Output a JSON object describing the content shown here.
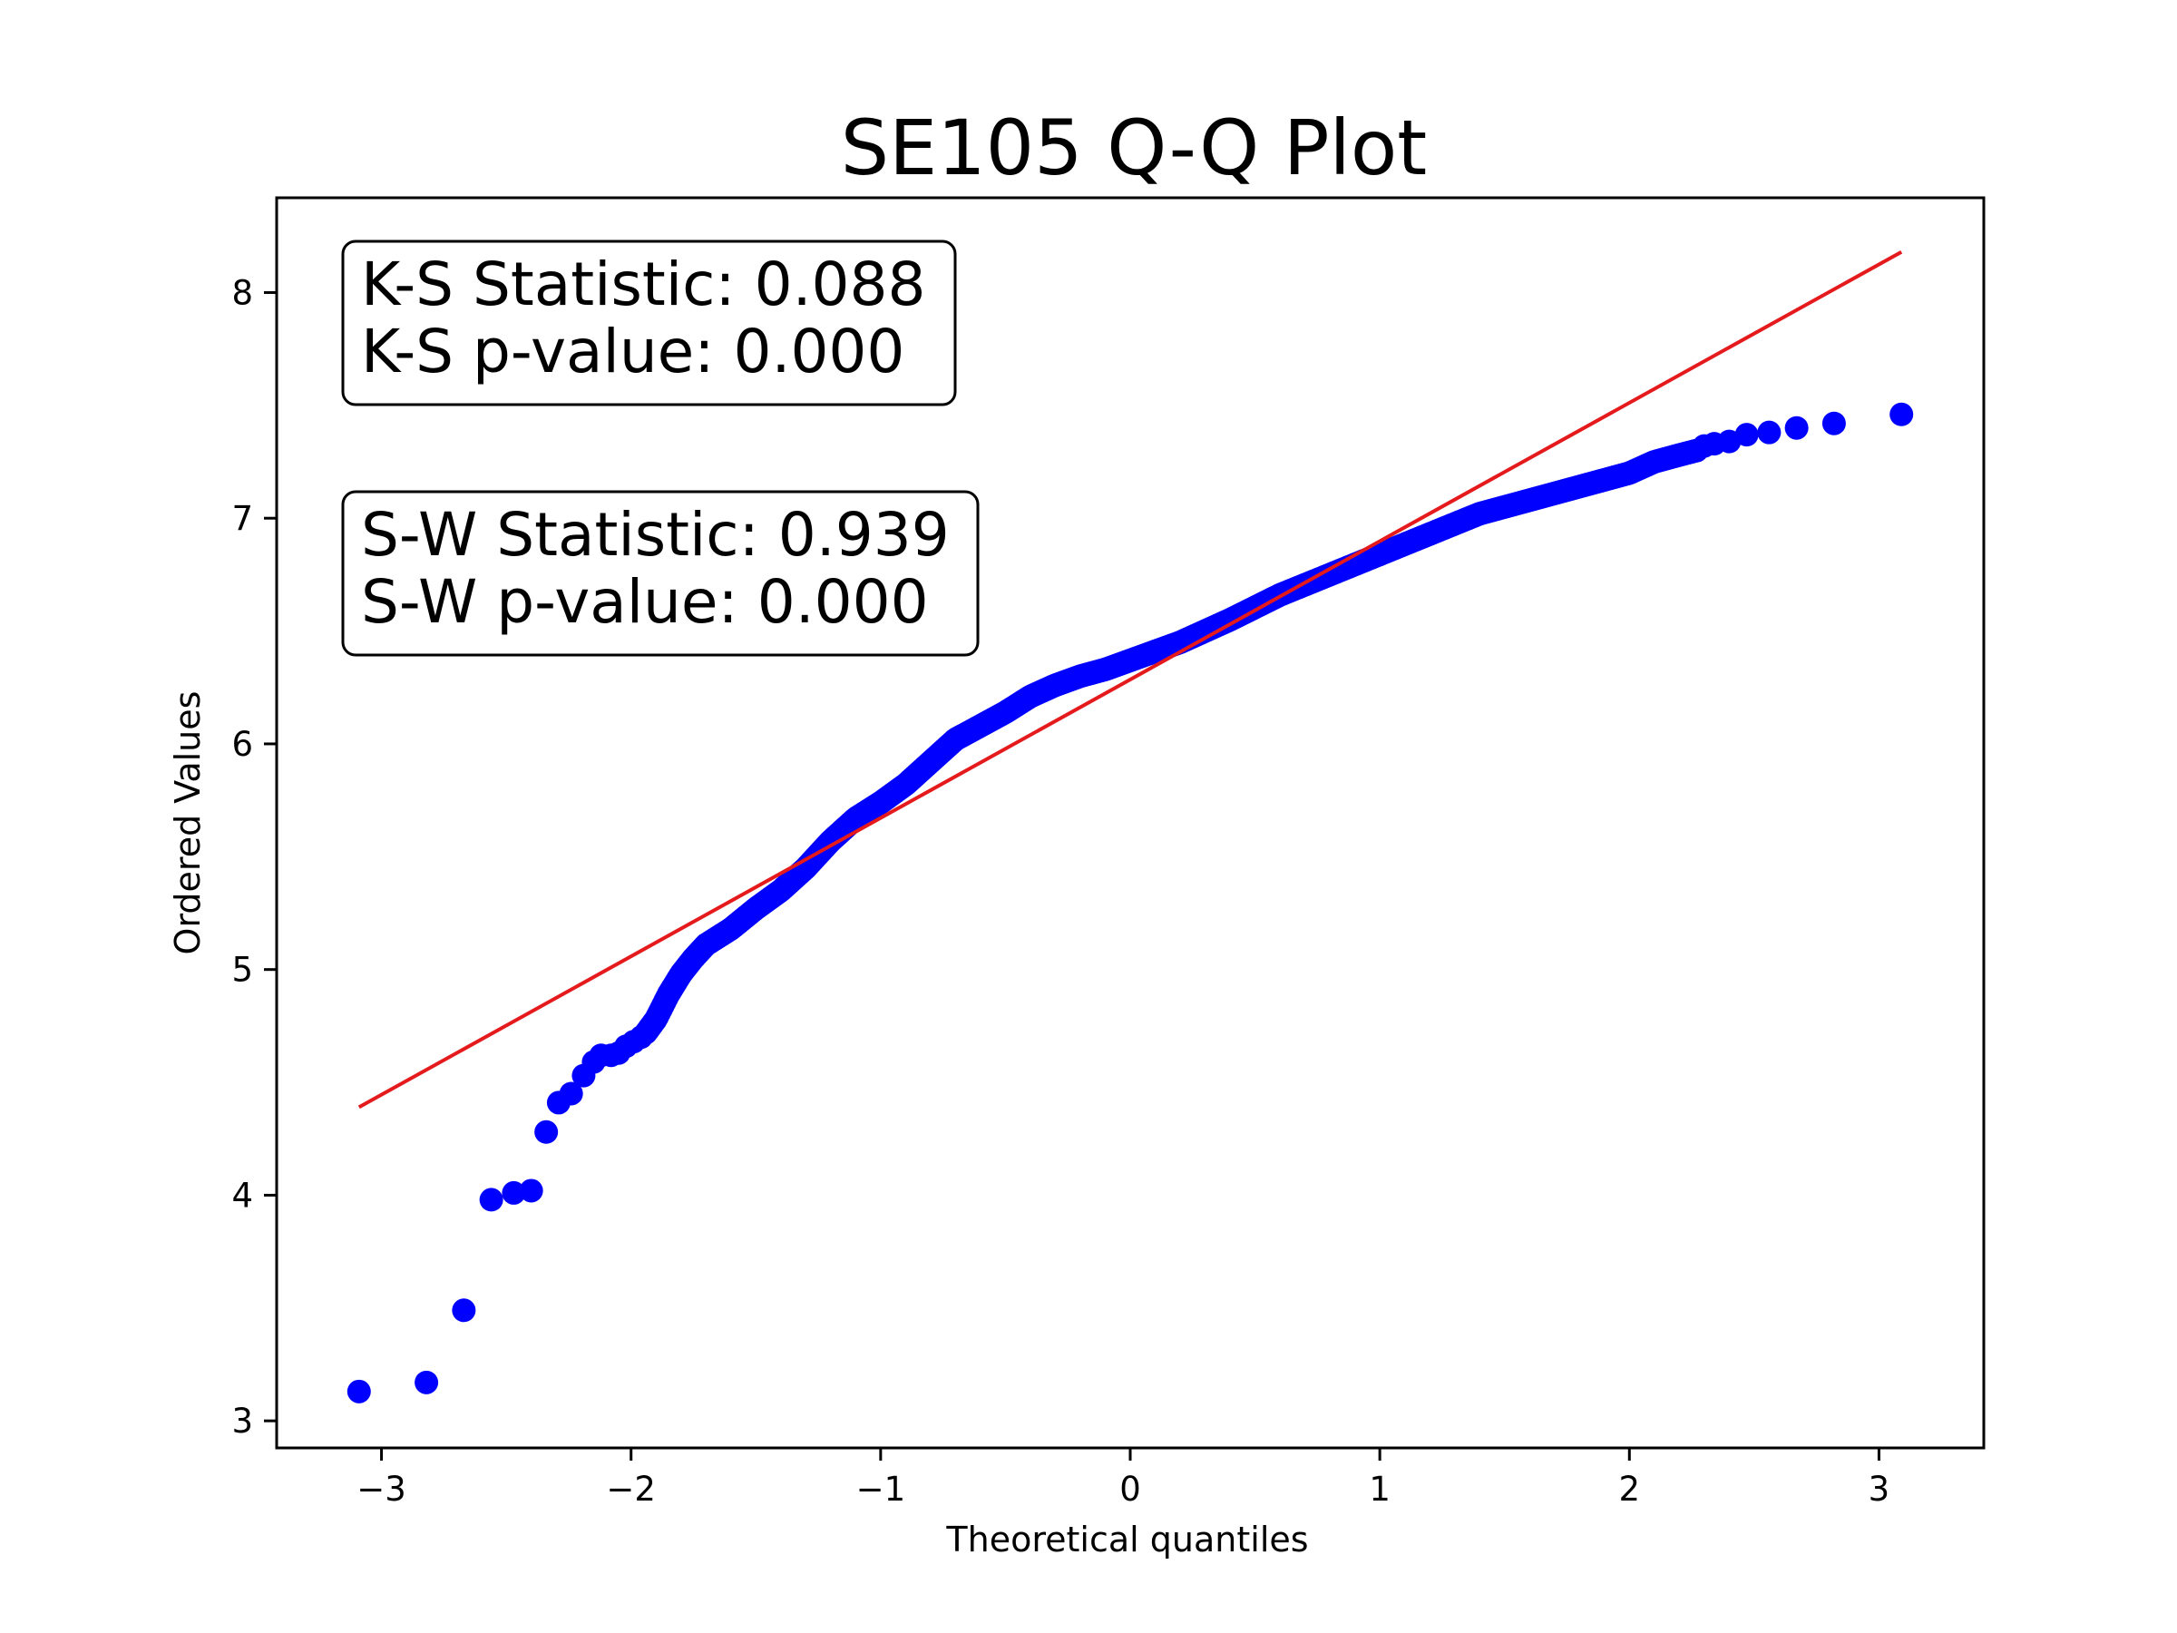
{
  "chart_data": {
    "type": "scatter",
    "title": "SE105 Q-Q Plot",
    "xlabel": "Theoretical quantiles",
    "ylabel": "Ordered Values",
    "xlim": [
      -3.42,
      3.42
    ],
    "ylim": [
      2.88,
      8.42
    ],
    "xticks": [
      -3,
      -2,
      -1,
      0,
      1,
      2,
      3
    ],
    "xtick_labels": [
      "−3",
      "−2",
      "−1",
      "0",
      "1",
      "2",
      "3"
    ],
    "yticks": [
      3,
      4,
      5,
      6,
      7,
      8
    ],
    "ytick_labels": [
      "3",
      "4",
      "5",
      "6",
      "7",
      "8"
    ],
    "grid": false,
    "point_color": "#0000ff",
    "line_color": "#e41a1c",
    "fit_line": {
      "x": [
        -3.09,
        3.09
      ],
      "y": [
        4.39,
        8.18
      ]
    },
    "outliers": {
      "x": [
        -3.09,
        -2.82,
        -2.67,
        -2.56,
        -2.47,
        -2.4,
        -2.34,
        -2.29,
        -2.24,
        -2.19,
        -2.15,
        -2.12,
        -2.08,
        -2.05,
        -2.02,
        -1.99,
        -1.96
      ],
      "y": [
        3.13,
        3.17,
        3.49,
        3.98,
        4.01,
        4.02,
        4.28,
        4.41,
        4.45,
        4.53,
        4.59,
        4.62,
        4.62,
        4.63,
        4.66,
        4.68,
        4.7
      ]
    },
    "upper_tail": {
      "x": [
        2.3,
        2.34,
        2.4,
        2.47,
        2.56,
        2.67,
        2.82,
        3.09
      ],
      "y": [
        7.32,
        7.33,
        7.34,
        7.37,
        7.38,
        7.4,
        7.42,
        7.46
      ]
    },
    "quantile_curve": {
      "x": [
        -1.94,
        -1.9,
        -1.85,
        -1.8,
        -1.75,
        -1.7,
        -1.6,
        -1.5,
        -1.4,
        -1.3,
        -1.2,
        -1.1,
        -1.0,
        -0.9,
        -0.8,
        -0.7,
        -0.6,
        -0.5,
        -0.4,
        -0.3,
        -0.2,
        -0.1,
        0.0,
        0.2,
        0.4,
        0.6,
        0.8,
        1.0,
        1.2,
        1.4,
        1.6,
        1.8,
        2.0,
        2.1,
        2.2,
        2.27
      ],
      "y": [
        4.72,
        4.78,
        4.89,
        4.98,
        5.05,
        5.11,
        5.18,
        5.27,
        5.35,
        5.45,
        5.57,
        5.67,
        5.74,
        5.82,
        5.92,
        6.02,
        6.08,
        6.14,
        6.21,
        6.26,
        6.3,
        6.33,
        6.37,
        6.45,
        6.55,
        6.66,
        6.75,
        6.84,
        6.93,
        7.02,
        7.08,
        7.14,
        7.2,
        7.25,
        7.28,
        7.3
      ]
    },
    "dense_samples": 560,
    "annotations": [
      {
        "lines": [
          "K-S Statistic: 0.088",
          "K-S p-value: 0.000"
        ]
      },
      {
        "lines": [
          "S-W Statistic: 0.939",
          "S-W p-value: 0.000"
        ]
      }
    ]
  }
}
